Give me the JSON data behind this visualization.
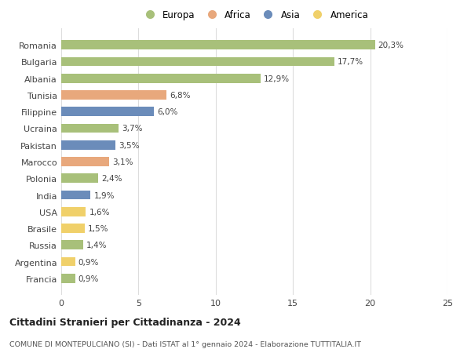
{
  "categories": [
    "Romania",
    "Bulgaria",
    "Albania",
    "Tunisia",
    "Filippine",
    "Ucraina",
    "Pakistan",
    "Marocco",
    "Polonia",
    "India",
    "USA",
    "Brasile",
    "Russia",
    "Argentina",
    "Francia"
  ],
  "values": [
    20.3,
    17.7,
    12.9,
    6.8,
    6.0,
    3.7,
    3.5,
    3.1,
    2.4,
    1.9,
    1.6,
    1.5,
    1.4,
    0.9,
    0.9
  ],
  "labels": [
    "20,3%",
    "17,7%",
    "12,9%",
    "6,8%",
    "6,0%",
    "3,7%",
    "3,5%",
    "3,1%",
    "2,4%",
    "1,9%",
    "1,6%",
    "1,5%",
    "1,4%",
    "0,9%",
    "0,9%"
  ],
  "continents": [
    "Europa",
    "Europa",
    "Europa",
    "Africa",
    "Asia",
    "Europa",
    "Asia",
    "Africa",
    "Europa",
    "Asia",
    "America",
    "America",
    "Europa",
    "America",
    "Europa"
  ],
  "continent_colors": {
    "Europa": "#a8c07a",
    "Africa": "#e8a87c",
    "Asia": "#6b8cba",
    "America": "#f0d06a"
  },
  "legend_order": [
    "Europa",
    "Africa",
    "Asia",
    "America"
  ],
  "title": "Cittadini Stranieri per Cittadinanza - 2024",
  "subtitle": "COMUNE DI MONTEPULCIANO (SI) - Dati ISTAT al 1° gennaio 2024 - Elaborazione TUTTITALIA.IT",
  "xlim": [
    0,
    25
  ],
  "xticks": [
    0,
    5,
    10,
    15,
    20,
    25
  ],
  "bg_color": "#ffffff",
  "grid_color": "#dddddd"
}
